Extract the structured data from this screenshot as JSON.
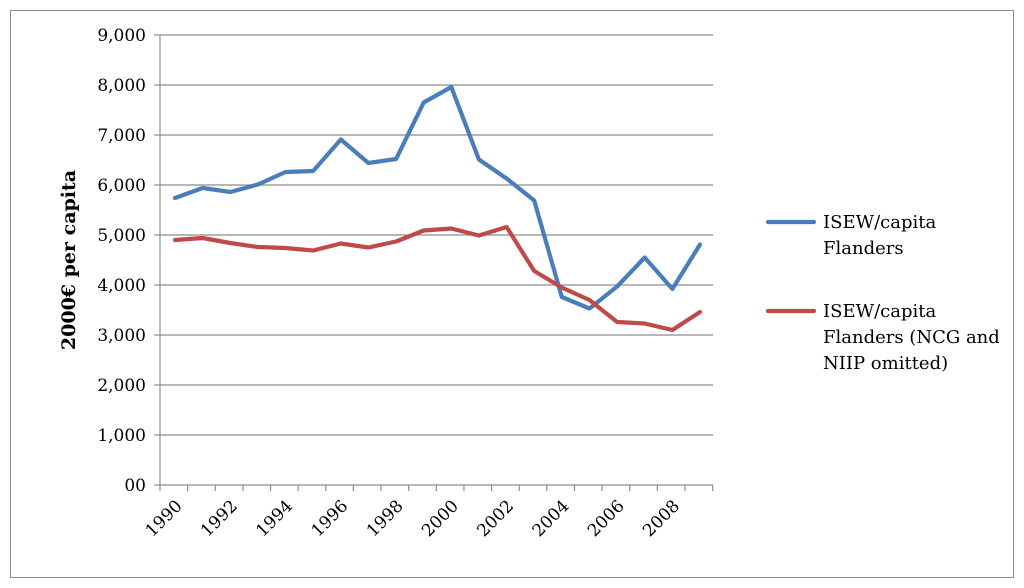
{
  "chart_data": {
    "type": "line",
    "title": "",
    "xlabel": "",
    "ylabel": "2000€ per capita",
    "ylim": [
      0,
      9000
    ],
    "y_ticks": [
      0,
      1000,
      2000,
      3000,
      4000,
      5000,
      6000,
      7000,
      8000,
      9000
    ],
    "y_tick_labels": [
      "00",
      "1,000",
      "2,000",
      "3,000",
      "4,000",
      "5,000",
      "6,000",
      "7,000",
      "8,000",
      "9,000"
    ],
    "x": [
      1990,
      1991,
      1992,
      1993,
      1994,
      1995,
      1996,
      1997,
      1998,
      1999,
      2000,
      2001,
      2002,
      2003,
      2004,
      2005,
      2006,
      2007,
      2008,
      2009
    ],
    "x_tick_labels": [
      "1990",
      "1992",
      "1994",
      "1996",
      "1998",
      "2000",
      "2002",
      "2004",
      "2006",
      "2008"
    ],
    "grid": "horizontal",
    "legend_position": "right",
    "series": [
      {
        "name": "ISEW/capita Flanders",
        "color": "#4a7ebb",
        "values": [
          5740,
          5940,
          5860,
          6010,
          6260,
          6280,
          6910,
          6440,
          6520,
          7650,
          7960,
          6510,
          6130,
          5690,
          3760,
          3530,
          3970,
          4550,
          3920,
          4810
        ]
      },
      {
        "name": "ISEW/capita Flanders (NCG and NIIP omitted)",
        "color": "#be4b48",
        "values": [
          4900,
          4940,
          4840,
          4760,
          4740,
          4690,
          4830,
          4750,
          4870,
          5090,
          5130,
          4990,
          5160,
          4280,
          3950,
          3700,
          3260,
          3230,
          3100,
          3460
        ]
      }
    ],
    "legend_lines": [
      [
        "ISEW/capita",
        "Flanders"
      ],
      [
        "ISEW/capita",
        "Flanders (NCG and",
        "NIIP omitted)"
      ]
    ]
  }
}
